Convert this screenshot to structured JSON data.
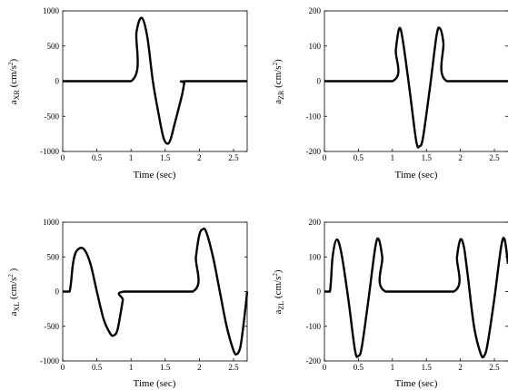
{
  "chart_data": [
    {
      "type": "line",
      "id": "xr",
      "ylabel": {
        "main": "a",
        "sub": "XR",
        "unit_open": " (cm/s",
        "sup": "2",
        "unit_close": ")"
      },
      "xlabel": "Time (sec)",
      "xlim": [
        0,
        2.7
      ],
      "ylim": [
        -1000,
        1000
      ],
      "xticks": [
        0,
        0.5,
        1,
        1.5,
        2,
        2.5
      ],
      "xtick_labels": [
        "0",
        "0.5",
        "1",
        "1.5",
        "2",
        "2.5"
      ],
      "yticks": [
        -1000,
        -500,
        0,
        500,
        1000
      ],
      "ytick_labels": [
        "-1000",
        "-500",
        "0",
        "500",
        "1000"
      ],
      "series": [
        {
          "x": [
            0,
            1.0,
            1.08,
            1.16,
            1.24,
            1.32,
            1.4,
            1.48,
            1.56,
            1.64,
            1.72,
            1.75,
            1.78,
            1.8,
            2.7
          ],
          "y": [
            0,
            0,
            700,
            900,
            620,
            0,
            -450,
            -820,
            -870,
            -600,
            -300,
            -180,
            -30,
            0,
            0
          ]
        }
      ]
    },
    {
      "type": "line",
      "id": "zr",
      "ylabel": {
        "main": "a",
        "sub": "ZR",
        "unit_open": " (cm/s",
        "sup": "2",
        "unit_close": ")"
      },
      "xlabel": "Time (sec)",
      "xlim": [
        0,
        2.7
      ],
      "ylim": [
        -200,
        200
      ],
      "xticks": [
        0,
        0.5,
        1,
        1.5,
        2,
        2.5
      ],
      "xtick_labels": [
        "0",
        "0.5",
        "1",
        "1.5",
        "2",
        "2.5"
      ],
      "yticks": [
        -200,
        -100,
        0,
        100,
        200
      ],
      "ytick_labels": [
        "-200",
        "-100",
        "0",
        "100",
        "200"
      ],
      "series": [
        {
          "x": [
            0,
            1.0,
            1.05,
            1.1,
            1.15,
            1.25,
            1.35,
            1.4,
            1.45,
            1.55,
            1.65,
            1.7,
            1.75,
            1.8,
            2.7
          ],
          "y": [
            0,
            0,
            90,
            150,
            120,
            -20,
            -170,
            -185,
            -160,
            -20,
            130,
            150,
            110,
            0,
            0
          ]
        }
      ]
    },
    {
      "type": "line",
      "id": "xl",
      "ylabel": {
        "main": "a",
        "sub": "XL",
        "unit_open": " (cm/s",
        "sup": "2",
        "unit_close": " )"
      },
      "xlabel": "Time (sec)",
      "xlim": [
        0,
        2.7
      ],
      "ylim": [
        -1000,
        1000
      ],
      "xticks": [
        0,
        0.5,
        1,
        1.5,
        2,
        2.5
      ],
      "xtick_labels": [
        "0",
        "0.5",
        "1",
        "1.5",
        "2",
        "2.5"
      ],
      "yticks": [
        -1000,
        -500,
        0,
        500,
        1000
      ],
      "ytick_labels": [
        "-1000",
        "-500",
        "0",
        "500",
        "1000"
      ],
      "series": [
        {
          "x": [
            0,
            0.1,
            0.15,
            0.2,
            0.3,
            0.4,
            0.5,
            0.6,
            0.7,
            0.75,
            0.8,
            0.85,
            0.88,
            0.9,
            1.9,
            1.95,
            2.0,
            2.05,
            2.1,
            2.2,
            2.3,
            2.4,
            2.5,
            2.55,
            2.6,
            2.65,
            2.7
          ],
          "y": [
            0,
            0,
            400,
            580,
            620,
            420,
            0,
            -400,
            -610,
            -630,
            -560,
            -300,
            -120,
            0,
            0,
            500,
            820,
            900,
            860,
            500,
            0,
            -500,
            -850,
            -900,
            -800,
            -450,
            0
          ]
        }
      ]
    },
    {
      "type": "line",
      "id": "zl",
      "ylabel": {
        "main": "a",
        "sub": "ZL",
        "unit_open": " (cm/s",
        "sup": "2",
        "unit_close": ")"
      },
      "xlabel": "Time (sec)",
      "xlim": [
        0,
        2.7
      ],
      "ylim": [
        -200,
        200
      ],
      "xticks": [
        0,
        0.5,
        1,
        1.5,
        2,
        2.5
      ],
      "xtick_labels": [
        "0",
        "0.5",
        "1",
        "1.5",
        "2",
        "2.5"
      ],
      "yticks": [
        -200,
        -100,
        0,
        100,
        200
      ],
      "ytick_labels": [
        "-200",
        "-100",
        "0",
        "100",
        "200"
      ],
      "series": [
        {
          "x": [
            0,
            0.08,
            0.12,
            0.18,
            0.25,
            0.35,
            0.45,
            0.5,
            0.55,
            0.65,
            0.75,
            0.8,
            0.85,
            0.9,
            1.9,
            1.95,
            2.0,
            2.05,
            2.1,
            2.2,
            2.3,
            2.35,
            2.4,
            2.5,
            2.6,
            2.65,
            2.7
          ],
          "y": [
            0,
            0,
            100,
            150,
            110,
            -20,
            -170,
            -185,
            -160,
            -20,
            130,
            150,
            100,
            0,
            0,
            100,
            150,
            130,
            60,
            -100,
            -180,
            -185,
            -150,
            -20,
            130,
            150,
            80
          ]
        }
      ]
    }
  ]
}
